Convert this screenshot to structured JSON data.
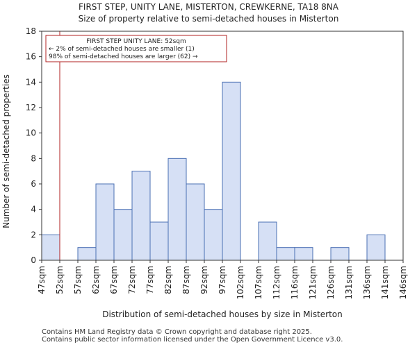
{
  "title_line1": "FIRST STEP, UNITY LANE, MISTERTON, CREWKERNE, TA18 8NA",
  "title_line2": "Size of property relative to semi-detached houses in Misterton",
  "footer_line1": "Contains HM Land Registry data © Crown copyright and database right 2025.",
  "footer_line2": "Contains public sector information licensed under the Open Government Licence v3.0.",
  "colors": {
    "bar_fill": "#d6e0f5",
    "bar_edge": "#4a6fb3",
    "marker_line": "#b22222",
    "annotation_border": "#b22222"
  },
  "chart_data": {
    "type": "bar",
    "xlabel": "Distribution of semi-detached houses by size in Misterton",
    "ylabel": "Number of semi-detached properties",
    "bin_labels": [
      "47sqm",
      "52sqm",
      "57sqm",
      "62sqm",
      "67sqm",
      "72sqm",
      "77sqm",
      "82sqm",
      "87sqm",
      "92sqm",
      "97sqm",
      "102sqm",
      "107sqm",
      "112sqm",
      "116sqm",
      "121sqm",
      "126sqm",
      "131sqm",
      "136sqm",
      "141sqm",
      "146sqm"
    ],
    "values": [
      2,
      0,
      1,
      6,
      4,
      7,
      3,
      8,
      6,
      4,
      14,
      0,
      3,
      1,
      1,
      0,
      1,
      0,
      2,
      0
    ],
    "ylim": [
      0,
      18
    ],
    "yticks": [
      0,
      2,
      4,
      6,
      8,
      10,
      12,
      14,
      16,
      18
    ],
    "marker_value": "52sqm",
    "grid": false,
    "annotation": {
      "line1": "FIRST STEP UNITY LANE: 52sqm",
      "line2": "← 2% of semi-detached houses are smaller (1)",
      "line3": "98% of semi-detached houses are larger (62) →"
    }
  }
}
